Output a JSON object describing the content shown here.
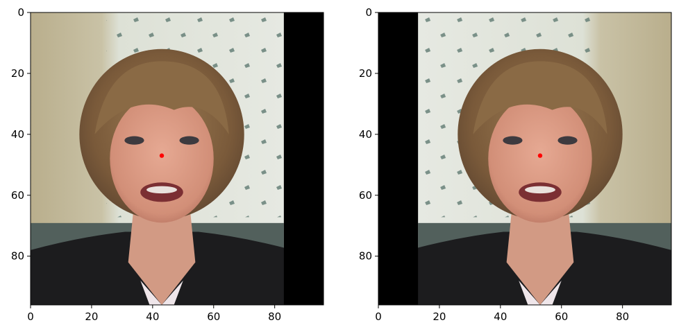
{
  "chart_data": [
    {
      "type": "image",
      "title": "",
      "xlabel": "",
      "ylabel": "",
      "xlim": [
        0,
        96
      ],
      "ylim": [
        96,
        0
      ],
      "xticks": [
        0,
        20,
        40,
        60,
        80
      ],
      "yticks": [
        0,
        20,
        40,
        60,
        80
      ],
      "image": {
        "description_tag": "face-photo",
        "content_x_range": [
          0,
          83
        ],
        "padding_x_range": [
          83,
          96
        ],
        "padding_color": "#000000"
      },
      "marker": {
        "x": 43,
        "y": 47,
        "color": "#ff0000"
      }
    },
    {
      "type": "image",
      "title": "",
      "xlabel": "",
      "ylabel": "",
      "xlim": [
        0,
        96
      ],
      "ylim": [
        96,
        0
      ],
      "xticks": [
        0,
        20,
        40,
        60,
        80
      ],
      "yticks": [
        0,
        20,
        40,
        60,
        80
      ],
      "image": {
        "description_tag": "face-photo-mirrored",
        "content_x_range": [
          13,
          96
        ],
        "padding_x_range": [
          0,
          13
        ],
        "padding_color": "#000000"
      },
      "marker": {
        "x": 53,
        "y": 47,
        "color": "#ff0000"
      }
    }
  ]
}
